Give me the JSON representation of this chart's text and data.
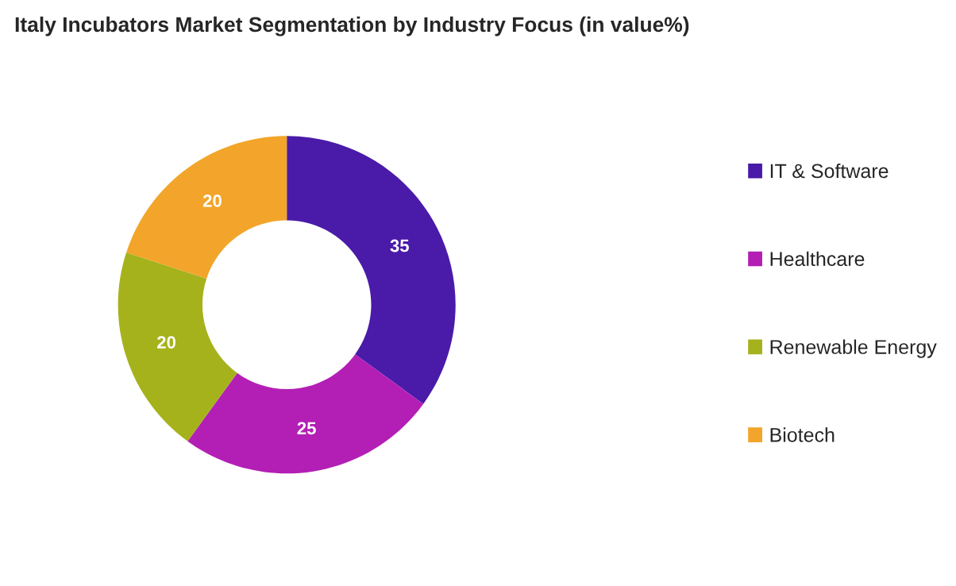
{
  "chart_data": {
    "type": "donut",
    "title": "Italy Incubators Market Segmentation by Industry Focus (in value%)",
    "categories": [
      "IT & Software",
      "Healthcare",
      "Renewable Energy",
      "Biotech"
    ],
    "values": [
      35,
      25,
      20,
      20
    ],
    "colors": [
      "#4a1aa8",
      "#b31fb5",
      "#a5b21c",
      "#f2a52a"
    ],
    "data_labels": true,
    "legend": "right"
  }
}
